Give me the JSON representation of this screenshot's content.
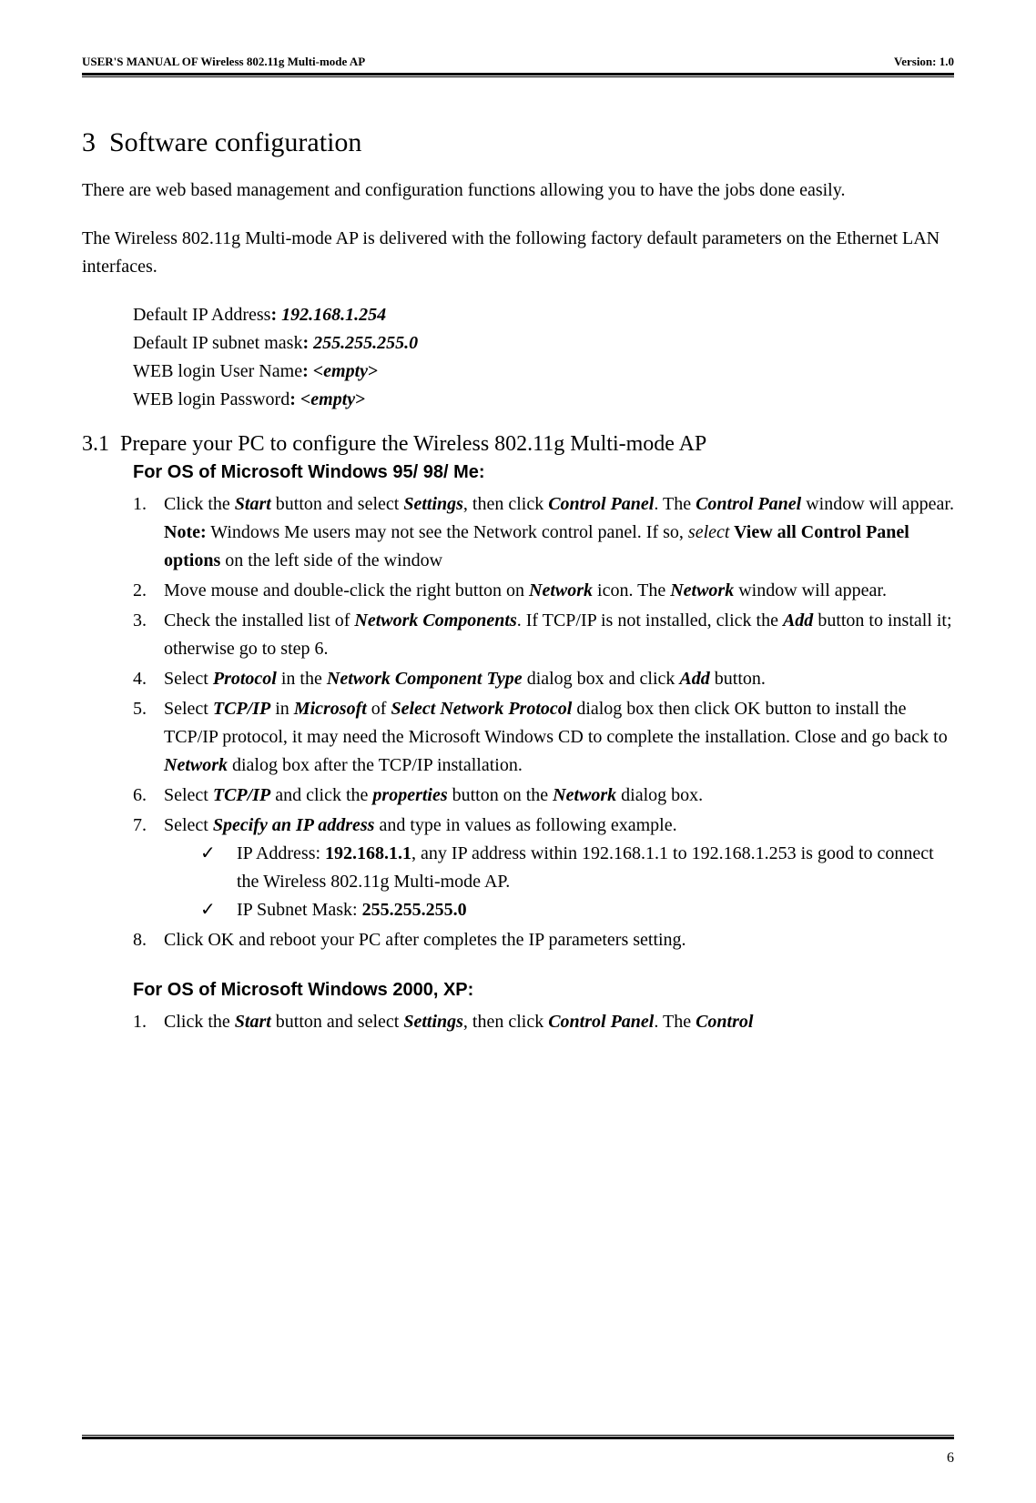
{
  "header": {
    "left": "USER'S MANUAL OF Wireless 802.11g Multi-mode AP",
    "right": "Version: 1.0"
  },
  "section": {
    "number": "3",
    "title": "Software configuration"
  },
  "intro": "There are web based management and configuration functions allowing you to have the jobs done easily.",
  "intro2": "The Wireless 802.11g Multi-mode AP is delivered with the following factory default parameters on the Ethernet LAN interfaces.",
  "defaults": {
    "l1a": "Default IP Address",
    "l1b": ": ",
    "l1c": "192.168.1.254",
    "l2a": "Default IP subnet mask",
    "l2b": ": ",
    "l2c": "255.255.255.0",
    "l3a": "WEB login User Name",
    "l3b": ": <",
    "l3c": "empty",
    "l3d": ">",
    "l4a": "WEB login Password",
    "l4b": ": <",
    "l4c": "empty",
    "l4d": ">"
  },
  "sub": {
    "number": "3.1",
    "title": "Prepare your PC to configure the Wireless 802.11g Multi-mode AP"
  },
  "os95": {
    "title": "For OS of Microsoft Windows 95/ 98/ Me:",
    "items": [
      {
        "num": "1.",
        "t1": "Click the ",
        "b1": "Start",
        "t2": " button and select ",
        "b2": "Settings",
        "t3": ", then click ",
        "b3": "Control Panel",
        "t4": ". The ",
        "b4": "Control Panel",
        "t5": " window will appear.",
        "noteLabel": "Note:",
        "noteText": " Windows Me users may not see the Network control panel. If so, ",
        "noteItalic": "select",
        "noteBold": " View all Control Panel options",
        "noteEnd": " on the left side of the window"
      },
      {
        "num": "2.",
        "t1": "Move mouse and double-click the right button on ",
        "b1": "Network",
        "t2": " icon. The ",
        "b2": "Network",
        "t3": " window will appear."
      },
      {
        "num": "3.",
        "t1": "Check the installed list of ",
        "b1": "Network Components",
        "t2": ". If TCP/IP is not installed, click the ",
        "b2": "Add",
        "t3": " button to install it; otherwise go to step 6."
      },
      {
        "num": "4.",
        "t1": "Select ",
        "b1": "Protocol",
        "t2": " in the ",
        "b2": "Network Component Type",
        "t3": " dialog box and click ",
        "b3": "Add",
        "t4": " button."
      },
      {
        "num": "5.",
        "t1": "Select ",
        "b1": "TCP/IP",
        "t2": " in ",
        "b2": "Microsoft",
        "t3": " of ",
        "b3": "Select Network Protocol",
        "t4": " dialog box then click OK button to install the TCP/IP protocol, it may need the Microsoft Windows CD to complete the installation. Close and go back to ",
        "b4": "Network",
        "t5": " dialog box after the TCP/IP installation."
      },
      {
        "num": "6.",
        "t1": "Select ",
        "b1": "TCP/IP",
        "t2": " and click the ",
        "b2": "properties",
        "t3": " button on the ",
        "b3": "Network",
        "t4": " dialog box."
      },
      {
        "num": "7.",
        "t1": "Select ",
        "b1": "Specify an IP address",
        "t2": " and type in values as following example.",
        "sub": [
          {
            "t1": "IP Address: ",
            "b1": "192.168.1.1",
            "t2": ", any IP address within 192.168.1.1 to 192.168.1.253 is good to connect the Wireless 802.11g Multi-mode AP."
          },
          {
            "t1": "IP Subnet Mask: ",
            "b1": "255.255.255.0"
          }
        ]
      },
      {
        "num": "8.",
        "t1": "Click OK and reboot your PC after completes the IP parameters setting."
      }
    ]
  },
  "os2000": {
    "title": "For OS of Microsoft Windows 2000, XP:",
    "item1": {
      "num": "1.",
      "t1": "Click the ",
      "b1": "Start",
      "t2": " button and select ",
      "b2": "Settings",
      "t3": ", then click ",
      "b3": "Control Panel",
      "t4": ". The ",
      "b4": "Control"
    }
  },
  "pageNum": "6",
  "check": "✓"
}
